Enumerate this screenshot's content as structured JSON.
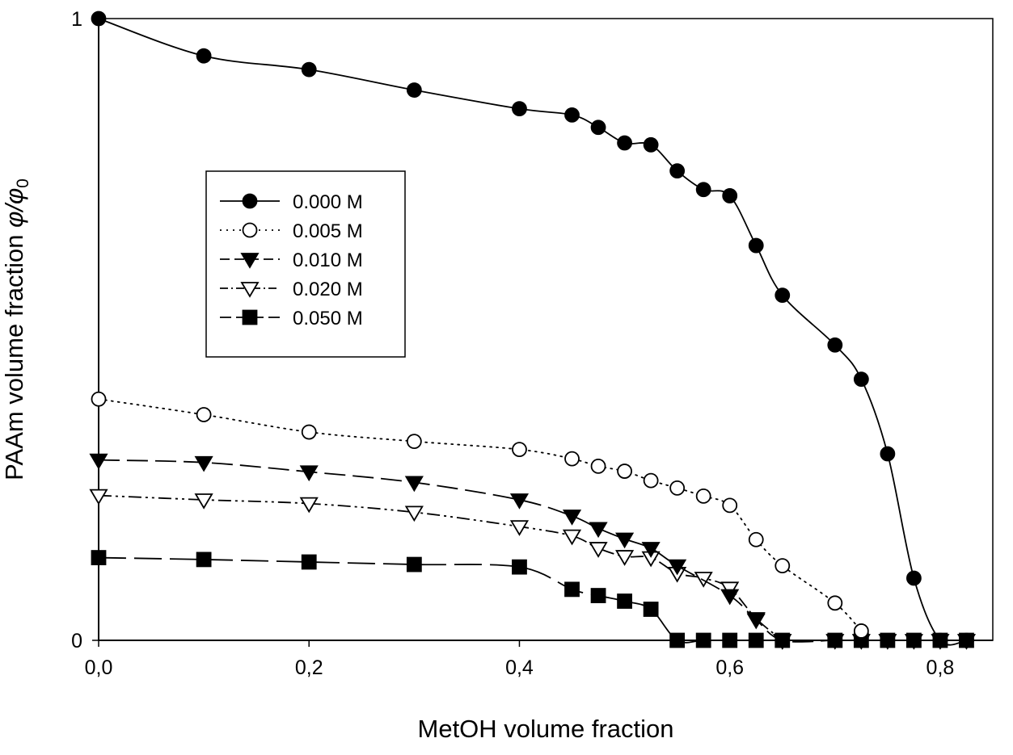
{
  "chart_data": {
    "type": "line",
    "xlabel": "MetOH volume fraction",
    "ylabel_main": "PAAm volume fraction ",
    "ylabel_phi": "φ/φ",
    "ylabel_sub": "0",
    "xlim": [
      0,
      0.85
    ],
    "ylim": [
      0,
      1
    ],
    "x_ticks": [
      0,
      0.2,
      0.4,
      0.6,
      0.8
    ],
    "x_tick_labels": [
      "0,0",
      "0,2",
      "0,4",
      "0,6",
      "0,8"
    ],
    "y_ticks": [
      0,
      1
    ],
    "y_tick_labels": [
      "0",
      "1"
    ],
    "grid": false,
    "legend_position": "center-left",
    "series": [
      {
        "name": "0.000 M",
        "marker": "circle-filled",
        "line": "solid",
        "x": [
          0,
          0.1,
          0.2,
          0.3,
          0.4,
          0.45,
          0.475,
          0.5,
          0.525,
          0.55,
          0.575,
          0.6,
          0.625,
          0.65,
          0.7,
          0.725,
          0.75,
          0.775,
          0.8,
          0.825
        ],
        "y": [
          1.0,
          0.94,
          0.918,
          0.885,
          0.855,
          0.845,
          0.825,
          0.8,
          0.797,
          0.755,
          0.725,
          0.715,
          0.635,
          0.555,
          0.475,
          0.42,
          0.3,
          0.1,
          0.0,
          0.0
        ]
      },
      {
        "name": "0.005 M",
        "marker": "circle-open",
        "line": "dotted",
        "x": [
          0,
          0.1,
          0.2,
          0.3,
          0.4,
          0.45,
          0.475,
          0.5,
          0.525,
          0.55,
          0.575,
          0.6,
          0.625,
          0.65,
          0.7,
          0.725
        ],
        "y": [
          0.388,
          0.363,
          0.335,
          0.32,
          0.307,
          0.292,
          0.28,
          0.272,
          0.257,
          0.245,
          0.232,
          0.217,
          0.162,
          0.12,
          0.06,
          0.015
        ]
      },
      {
        "name": "0.010 M",
        "marker": "triangle-down-filled",
        "line": "dashed",
        "x": [
          0,
          0.1,
          0.2,
          0.3,
          0.4,
          0.45,
          0.475,
          0.5,
          0.525,
          0.55,
          0.6,
          0.625,
          0.65,
          0.7,
          0.725,
          0.75,
          0.775,
          0.8,
          0.825
        ],
        "y": [
          0.29,
          0.286,
          0.271,
          0.254,
          0.226,
          0.2,
          0.18,
          0.163,
          0.148,
          0.12,
          0.072,
          0.033,
          0.0,
          0.0,
          0.0,
          0.0,
          0.0,
          0.0,
          0.0
        ]
      },
      {
        "name": "0.020 M",
        "marker": "triangle-down-open",
        "line": "dash-dot-dot",
        "x": [
          0,
          0.1,
          0.2,
          0.3,
          0.4,
          0.45,
          0.475,
          0.5,
          0.525,
          0.55,
          0.575,
          0.6,
          0.625,
          0.65
        ],
        "y": [
          0.233,
          0.226,
          0.22,
          0.206,
          0.183,
          0.168,
          0.148,
          0.135,
          0.133,
          0.108,
          0.1,
          0.084,
          0.035,
          0.0
        ]
      },
      {
        "name": "0.050 M",
        "marker": "square-filled",
        "line": "long-dash",
        "x": [
          0,
          0.1,
          0.2,
          0.3,
          0.4,
          0.45,
          0.475,
          0.5,
          0.525,
          0.55,
          0.575,
          0.6,
          0.625,
          0.65,
          0.7,
          0.725,
          0.75,
          0.775,
          0.8,
          0.825
        ],
        "y": [
          0.133,
          0.13,
          0.126,
          0.122,
          0.118,
          0.082,
          0.072,
          0.063,
          0.05,
          0.0,
          0.0,
          0.0,
          0.0,
          0.0,
          0.0,
          0.0,
          0.0,
          0.0,
          0.0,
          0.0
        ]
      }
    ]
  }
}
